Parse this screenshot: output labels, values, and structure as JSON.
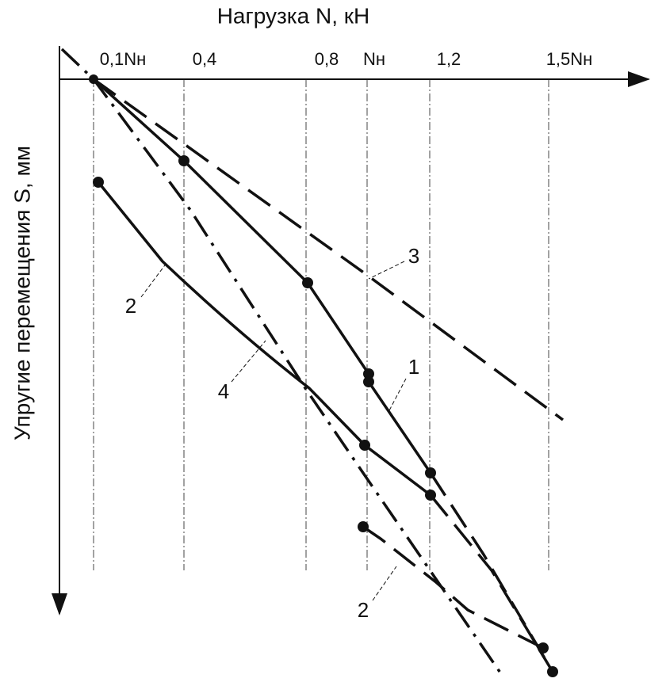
{
  "x_axis_title": "Нагрузка N, кН",
  "y_axis_title": "Упругие перемещения S, мм",
  "x_tick_labels": [
    "0,1Nн",
    "0,4",
    "0,8",
    "Nн",
    "1,2",
    "1,5Nн"
  ],
  "curve_labels": [
    "3",
    "2",
    "1",
    "4",
    "2"
  ]
}
